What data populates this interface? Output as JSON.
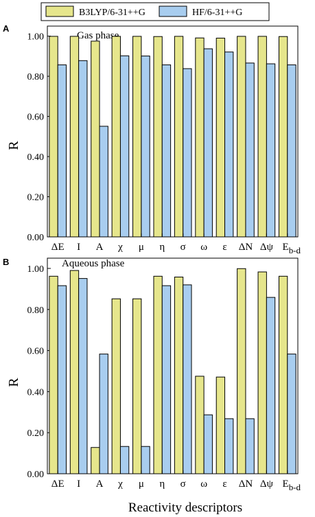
{
  "legend": {
    "series1": "B3LYP/6-31++G",
    "series2": "HF/6-31++G"
  },
  "colors": {
    "series1": "#E6E68C",
    "series2": "#A8CDEF",
    "outline": "#000000"
  },
  "xlabel": "Reactivity descriptors",
  "chart_data": [
    {
      "type": "bar",
      "panel": "A",
      "title": "Gas phase",
      "ylabel": "R",
      "ylim": [
        0,
        1.05
      ],
      "yticks": [
        "0.00",
        "0.20",
        "0.40",
        "0.60",
        "0.80",
        "1.00"
      ],
      "categories": [
        "ΔE",
        "I",
        "A",
        "χ",
        "μ",
        "η",
        "σ",
        "ω",
        "ε",
        "ΔN",
        "Δψ",
        "E_b-d"
      ],
      "series": [
        {
          "name": "B3LYP/6-31++G",
          "values": [
            0.999,
            0.999,
            0.975,
            0.999,
            0.999,
            0.998,
            0.999,
            0.991,
            0.99,
            0.999,
            0.999,
            0.998
          ]
        },
        {
          "name": "HF/6-31++G",
          "values": [
            0.857,
            0.878,
            0.551,
            0.902,
            0.901,
            0.857,
            0.838,
            0.937,
            0.921,
            0.866,
            0.862,
            0.857
          ]
        }
      ]
    },
    {
      "type": "bar",
      "panel": "B",
      "title": "Aqueous phase",
      "ylabel": "R",
      "ylim": [
        0,
        1.05
      ],
      "yticks": [
        "0.00",
        "0.20",
        "0.40",
        "0.60",
        "0.80",
        "1.00"
      ],
      "categories": [
        "ΔE",
        "I",
        "A",
        "χ",
        "μ",
        "η",
        "σ",
        "ω",
        "ε",
        "ΔN",
        "Δψ",
        "E_b-d"
      ],
      "series": [
        {
          "name": "B3LYP/6-31++G",
          "values": [
            0.962,
            0.99,
            0.128,
            0.852,
            0.852,
            0.962,
            0.958,
            0.475,
            0.471,
            0.999,
            0.983,
            0.962
          ]
        },
        {
          "name": "HF/6-31++G",
          "values": [
            0.916,
            0.951,
            0.583,
            0.133,
            0.133,
            0.916,
            0.92,
            0.287,
            0.268,
            0.268,
            0.859,
            0.583
          ]
        }
      ]
    }
  ]
}
